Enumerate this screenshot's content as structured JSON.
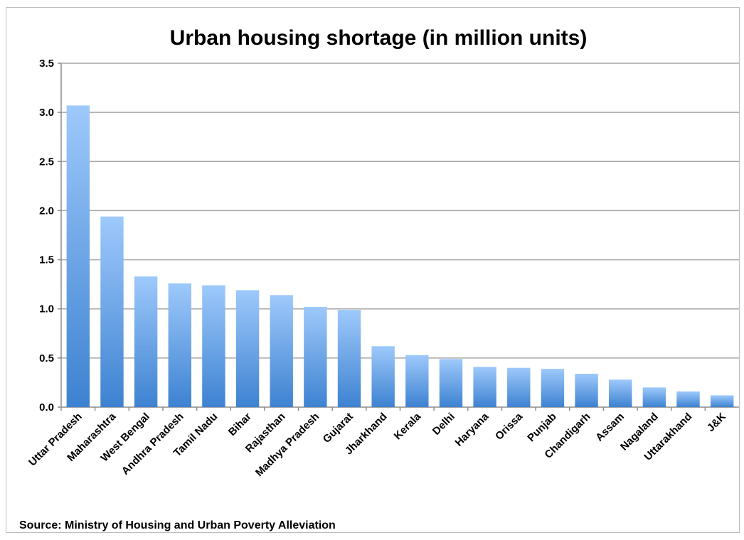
{
  "chart_data": {
    "type": "bar",
    "title": "Urban housing shortage (in million units)",
    "categories": [
      "Uttar Pradesh",
      "Maharashtra",
      "West Bengal",
      "Andhra Pradesh",
      "Tamil Nadu",
      "Bihar",
      "Rajasthan",
      "Madhya Pradesh",
      "Gujarat",
      "Jharkhand",
      "Kerala",
      "Delhi",
      "Haryana",
      "Orissa",
      "Punjab",
      "Chandigarh",
      "Assam",
      "Nagaland",
      "Uttarakhand",
      "J&K"
    ],
    "values": [
      3.07,
      1.94,
      1.33,
      1.26,
      1.24,
      1.19,
      1.14,
      1.02,
      0.99,
      0.62,
      0.53,
      0.49,
      0.41,
      0.4,
      0.39,
      0.34,
      0.28,
      0.2,
      0.16,
      0.12
    ],
    "ylim": [
      0,
      3.5
    ],
    "yticks": [
      "0.0",
      "0.5",
      "1.0",
      "1.5",
      "2.0",
      "2.5",
      "3.0",
      "3.5"
    ],
    "grid": true,
    "legend": "none",
    "bar_color_top": "#9ec9fb",
    "bar_color_bottom": "#3d82d1"
  },
  "source_note": "Source: Ministry of Housing and Urban Poverty Alleviation"
}
